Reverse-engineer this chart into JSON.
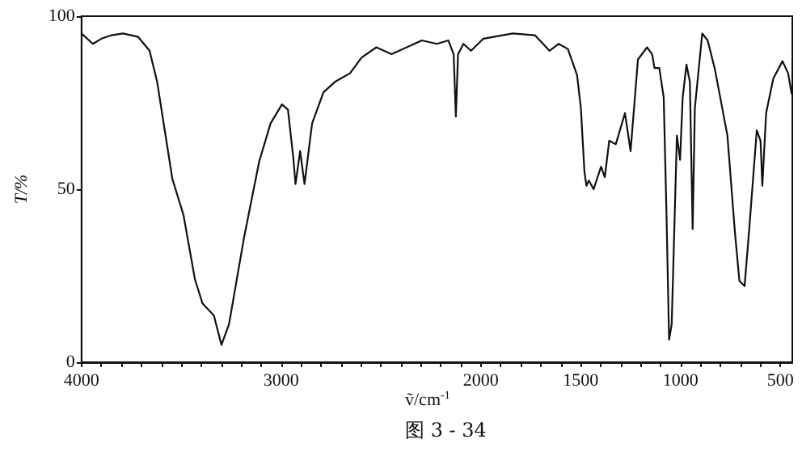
{
  "chart_data": {
    "type": "line",
    "xlabel": "ṽ/cm$^{-1}$",
    "ylabel": "T/%",
    "annotations": [
      "图 3 - 34"
    ],
    "xlim": [
      4000,
      440
    ],
    "ylim": [
      0,
      100
    ],
    "xticks": [
      4000,
      {
        "value": 3900,
        "label": null
      },
      {
        "value": 3800,
        "label": null
      },
      {
        "value": 3700,
        "label": null
      },
      {
        "value": 3600,
        "label": null
      },
      {
        "value": 3500,
        "label": null
      },
      {
        "value": 3400,
        "label": null
      },
      {
        "value": 3300,
        "label": null
      },
      {
        "value": 3200,
        "label": null
      },
      {
        "value": 3100,
        "label": null
      },
      3000,
      {
        "value": 2900,
        "label": null
      },
      {
        "value": 2800,
        "label": null
      },
      {
        "value": 2700,
        "label": null
      },
      {
        "value": 2600,
        "label": null
      },
      {
        "value": 2500,
        "label": null
      },
      {
        "value": 2400,
        "label": null
      },
      {
        "value": 2300,
        "label": null
      },
      {
        "value": 2200,
        "label": null
      },
      {
        "value": 2100,
        "label": null
      },
      2000,
      {
        "value": 1900,
        "label": null
      },
      {
        "value": 1800,
        "label": null
      },
      {
        "value": 1700,
        "label": null
      },
      {
        "value": 1600,
        "label": null
      },
      1500,
      {
        "value": 1400,
        "label": null
      },
      {
        "value": 1300,
        "label": null
      },
      {
        "value": 1200,
        "label": null
      },
      {
        "value": 1100,
        "label": null
      },
      1000,
      {
        "value": 900,
        "label": null
      },
      {
        "value": 800,
        "label": null
      },
      {
        "value": 700,
        "label": null
      },
      {
        "value": 600,
        "label": null
      },
      500
    ],
    "yticks": [
      0,
      50,
      100
    ],
    "grid": false,
    "marker": "none",
    "line_style": "solid",
    "series": [
      {
        "color": "#111111",
        "x": [
          4000,
          3943,
          3900,
          3849,
          3792,
          3716,
          3659,
          3621,
          3583,
          3545,
          3489,
          3432,
          3394,
          3337,
          3299,
          3261,
          3186,
          3110,
          3053,
          2996,
          2966,
          2939,
          2928,
          2905,
          2883,
          2845,
          2788,
          2731,
          2655,
          2598,
          2523,
          2447,
          2295,
          2220,
          2163,
          2136,
          2125,
          2114,
          2087,
          2049,
          1987,
          1840,
          1729,
          1656,
          1610,
          1564,
          1518,
          1499,
          1481,
          1471,
          1459,
          1435,
          1398,
          1379,
          1357,
          1324,
          1278,
          1250,
          1213,
          1167,
          1142,
          1130,
          1106,
          1084,
          1070,
          1057,
          1044,
          1029,
          1018,
          1002,
          989,
          970,
          953,
          939,
          928,
          891,
          864,
          827,
          765,
          728,
          705,
          679,
          655,
          618,
          599,
          590,
          571,
          535,
          489,
          461,
          443
        ],
        "values": [
          95,
          92,
          93.5,
          94.5,
          95,
          94,
          90,
          81,
          67,
          53,
          42.5,
          24,
          17,
          13.5,
          5,
          11,
          36,
          58,
          69,
          74.5,
          73,
          59,
          51.5,
          61,
          51.5,
          69,
          78,
          81,
          83.5,
          88,
          91,
          89,
          93,
          92,
          93,
          89,
          71,
          89,
          92,
          90,
          93.5,
          95,
          94.5,
          90,
          92,
          90.5,
          83,
          73.5,
          55,
          51,
          52.5,
          50,
          56.5,
          53.5,
          64,
          63,
          72,
          61,
          87.5,
          91,
          89,
          85,
          85,
          76.5,
          42.5,
          6.5,
          11,
          42.5,
          65.5,
          58.5,
          76.5,
          86,
          81,
          38.5,
          73.5,
          95,
          93,
          84.5,
          65.5,
          38,
          23.5,
          22,
          39,
          67,
          64,
          51,
          72,
          82,
          87,
          83.5,
          77.5
        ]
      }
    ]
  }
}
